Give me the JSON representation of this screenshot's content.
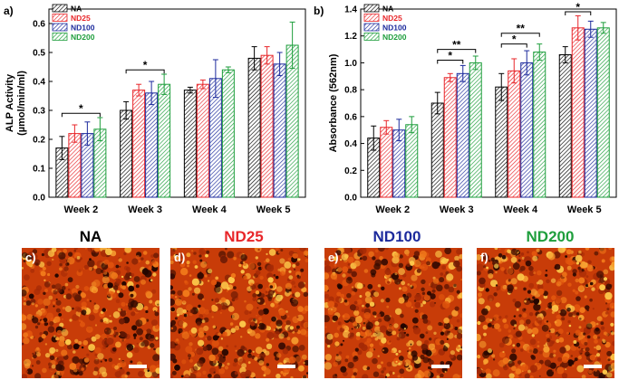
{
  "chart_data": [
    {
      "type": "bar",
      "panel_label": "a)",
      "categories": [
        "Week 2",
        "Week 3",
        "Week 4",
        "Week 5"
      ],
      "ylabel": "ALP Activity\n(µmol/min/ml)",
      "xlabel": "",
      "ylim": [
        0.0,
        0.65
      ],
      "yticks": [
        "0.0",
        "0.1",
        "0.2",
        "0.3",
        "0.4",
        "0.5",
        "0.6"
      ],
      "legend": {
        "position": "top-left",
        "entries": [
          "NA",
          "ND25",
          "ND100",
          "ND200"
        ]
      },
      "series": [
        {
          "name": "NA",
          "values": [
            0.17,
            0.3,
            0.37,
            0.48
          ],
          "errors": [
            0.04,
            0.03,
            0.01,
            0.04
          ]
        },
        {
          "name": "ND25",
          "values": [
            0.22,
            0.37,
            0.39,
            0.49
          ],
          "errors": [
            0.03,
            0.02,
            0.015,
            0.03
          ]
        },
        {
          "name": "ND100",
          "values": [
            0.22,
            0.36,
            0.41,
            0.46
          ],
          "errors": [
            0.04,
            0.04,
            0.065,
            0.04
          ]
        },
        {
          "name": "ND200",
          "values": [
            0.235,
            0.39,
            0.44,
            0.525
          ],
          "errors": [
            0.04,
            0.035,
            0.01,
            0.08
          ]
        }
      ],
      "significance": [
        {
          "label": "*",
          "category": 0,
          "from_series": 0,
          "to_series": 3,
          "level": 0.29
        },
        {
          "label": "*",
          "category": 1,
          "from_series": 0,
          "to_series": 3,
          "level": 0.44
        }
      ]
    },
    {
      "type": "bar",
      "panel_label": "b)",
      "categories": [
        "Week 2",
        "Week 3",
        "Week 4",
        "Week 5"
      ],
      "ylabel": "Absorbance (562nm)",
      "xlabel": "",
      "ylim": [
        0.0,
        1.4
      ],
      "yticks": [
        "0.0",
        "0.2",
        "0.4",
        "0.6",
        "0.8",
        "1.0",
        "1.2",
        "1.4"
      ],
      "legend": {
        "position": "top-left",
        "entries": [
          "NA",
          "ND25",
          "ND100",
          "ND200"
        ]
      },
      "series": [
        {
          "name": "NA",
          "values": [
            0.44,
            0.7,
            0.82,
            1.06
          ],
          "errors": [
            0.09,
            0.08,
            0.1,
            0.06
          ]
        },
        {
          "name": "ND25",
          "values": [
            0.52,
            0.89,
            0.94,
            1.26
          ],
          "errors": [
            0.05,
            0.03,
            0.09,
            0.09
          ]
        },
        {
          "name": "ND100",
          "values": [
            0.5,
            0.92,
            1.0,
            1.25
          ],
          "errors": [
            0.08,
            0.06,
            0.09,
            0.06
          ]
        },
        {
          "name": "ND200",
          "values": [
            0.54,
            1.0,
            1.08,
            1.26
          ],
          "errors": [
            0.06,
            0.05,
            0.06,
            0.04
          ]
        }
      ],
      "significance": [
        {
          "label": "*",
          "category": 1,
          "from_series": 0,
          "to_series": 2,
          "level": 1.02
        },
        {
          "label": "**",
          "category": 1,
          "from_series": 0,
          "to_series": 3,
          "level": 1.1
        },
        {
          "label": "*",
          "category": 2,
          "from_series": 0,
          "to_series": 2,
          "level": 1.14
        },
        {
          "label": "**",
          "category": 2,
          "from_series": 0,
          "to_series": 3,
          "level": 1.22
        },
        {
          "label": "*",
          "category": 3,
          "from_series": 0,
          "to_series": 2,
          "level": 1.38
        }
      ]
    }
  ],
  "series_colors": [
    "#000000",
    "#e8262a",
    "#1c2a9c",
    "#1e9e3c"
  ],
  "micrographs": [
    {
      "label": "c)",
      "title": "NA",
      "title_color": "#000000"
    },
    {
      "label": "d)",
      "title": "ND25",
      "title_color": "#e8262a"
    },
    {
      "label": "e)",
      "title": "ND100",
      "title_color": "#1c2a9c"
    },
    {
      "label": "f)",
      "title": "ND200",
      "title_color": "#1e9e3c"
    }
  ]
}
